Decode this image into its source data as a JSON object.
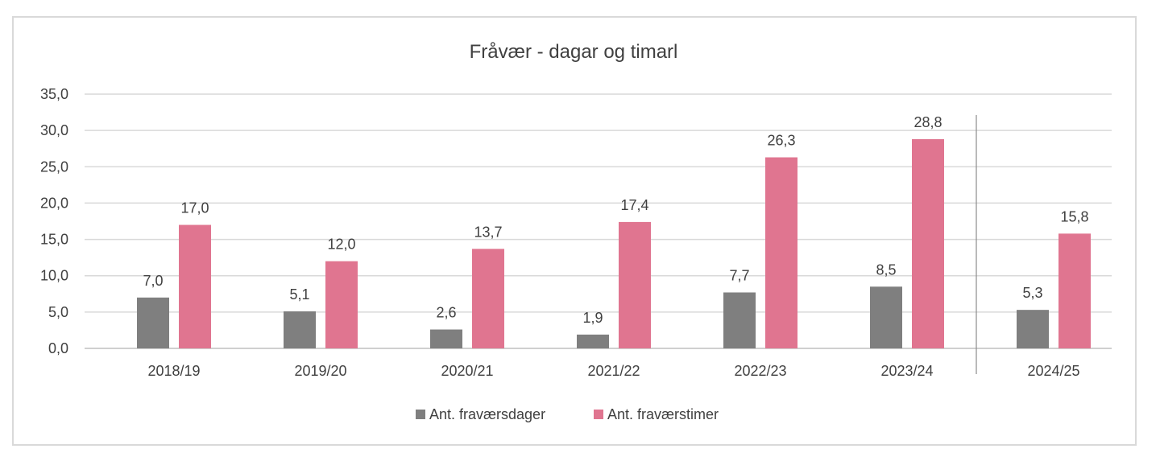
{
  "chart_data": {
    "type": "bar",
    "title": "Fråvær - dagar og timarl",
    "categories": [
      "2018/19",
      "2019/20",
      "2020/21",
      "2021/22",
      "2022/23",
      "2023/24",
      "2024/25"
    ],
    "series": [
      {
        "name": "Ant. fraværsdager",
        "color": "#7f7f7f",
        "values": [
          7.0,
          5.1,
          2.6,
          1.9,
          7.7,
          8.5,
          5.3
        ],
        "labels": [
          "7,0",
          "5,1",
          "2,6",
          "1,9",
          "7,7",
          "8,5",
          "5,3"
        ]
      },
      {
        "name": "Ant. fraværstimer",
        "color": "#e07590",
        "values": [
          17.0,
          12.0,
          13.7,
          17.4,
          26.3,
          28.8,
          15.8
        ],
        "labels": [
          "17,0",
          "12,0",
          "13,7",
          "17,4",
          "26,3",
          "28,8",
          "15,8"
        ]
      }
    ],
    "ylim": [
      0,
      35
    ],
    "yticks": [
      0,
      5,
      10,
      15,
      20,
      25,
      30,
      35
    ],
    "ytick_labels": [
      "0,0",
      "5,0",
      "10,0",
      "15,0",
      "20,0",
      "25,0",
      "30,0",
      "35,0"
    ],
    "grid": true,
    "legend_position": "bottom",
    "separator_before_category": "2024/25"
  }
}
